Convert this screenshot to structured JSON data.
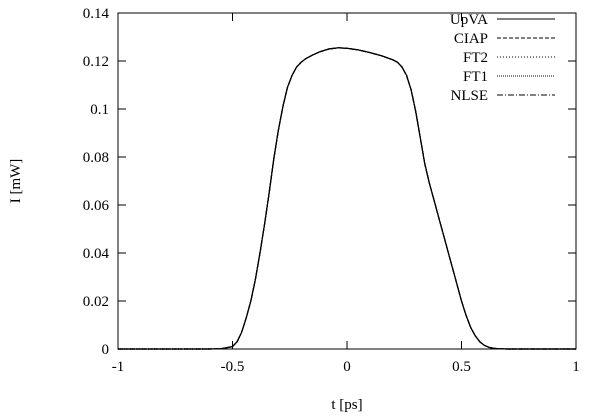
{
  "chart_data": {
    "type": "line",
    "title": "",
    "xlabel": "t [ps]",
    "ylabel": "I [mW]",
    "xlim": [
      -1,
      1
    ],
    "ylim": [
      0,
      0.14
    ],
    "x_ticks": [
      -1,
      -0.5,
      0,
      0.5,
      1
    ],
    "x_tick_labels": [
      "-1",
      "-0.5",
      "0",
      "0.5",
      "1"
    ],
    "y_ticks": [
      0,
      0.02,
      0.04,
      0.06,
      0.08,
      0.1,
      0.12,
      0.14
    ],
    "y_tick_labels": [
      "0",
      "0.02",
      "0.04",
      "0.06",
      "0.08",
      "0.1",
      "0.12",
      "0.14"
    ],
    "grid": false,
    "legend_position": "top-right",
    "x": [
      -1.0,
      -0.6,
      -0.55,
      -0.5,
      -0.48,
      -0.46,
      -0.44,
      -0.42,
      -0.4,
      -0.38,
      -0.36,
      -0.34,
      -0.32,
      -0.3,
      -0.28,
      -0.26,
      -0.24,
      -0.22,
      -0.2,
      -0.18,
      -0.15,
      -0.12,
      -0.08,
      -0.04,
      0.0,
      0.05,
      0.1,
      0.15,
      0.2,
      0.22,
      0.24,
      0.26,
      0.28,
      0.3,
      0.32,
      0.34,
      0.36,
      0.38,
      0.4,
      0.42,
      0.44,
      0.46,
      0.48,
      0.5,
      0.52,
      0.54,
      0.56,
      0.58,
      0.6,
      0.62,
      0.64,
      0.66,
      0.7,
      1.0
    ],
    "series": [
      {
        "name": "UpVA",
        "dash": "",
        "values": [
          0,
          0,
          0.0001,
          0.001,
          0.003,
          0.007,
          0.013,
          0.02,
          0.029,
          0.04,
          0.052,
          0.065,
          0.079,
          0.091,
          0.101,
          0.109,
          0.114,
          0.1175,
          0.1195,
          0.121,
          0.1225,
          0.1238,
          0.125,
          0.1255,
          0.1253,
          0.1246,
          0.1235,
          0.1222,
          0.1205,
          0.1195,
          0.1175,
          0.114,
          0.108,
          0.099,
          0.088,
          0.077,
          0.069,
          0.062,
          0.055,
          0.048,
          0.041,
          0.034,
          0.027,
          0.02,
          0.014,
          0.009,
          0.0055,
          0.003,
          0.0015,
          0.0007,
          0.0003,
          0.0001,
          0,
          0
        ]
      },
      {
        "name": "CIAP",
        "dash": "4,2",
        "values": [
          0,
          0,
          0.0001,
          0.001,
          0.003,
          0.007,
          0.013,
          0.02,
          0.029,
          0.04,
          0.052,
          0.065,
          0.079,
          0.091,
          0.101,
          0.109,
          0.114,
          0.1175,
          0.1195,
          0.121,
          0.1225,
          0.1238,
          0.125,
          0.1255,
          0.1253,
          0.1246,
          0.1235,
          0.1222,
          0.1205,
          0.1195,
          0.1175,
          0.114,
          0.108,
          0.099,
          0.088,
          0.077,
          0.069,
          0.062,
          0.055,
          0.048,
          0.041,
          0.034,
          0.027,
          0.02,
          0.014,
          0.009,
          0.0055,
          0.003,
          0.0015,
          0.0007,
          0.0003,
          0.0001,
          0,
          0
        ]
      },
      {
        "name": "FT2",
        "dash": "1,2",
        "values": [
          0,
          0,
          0.0001,
          0.001,
          0.003,
          0.007,
          0.013,
          0.02,
          0.029,
          0.04,
          0.052,
          0.065,
          0.079,
          0.091,
          0.101,
          0.109,
          0.114,
          0.1175,
          0.1195,
          0.121,
          0.1225,
          0.1238,
          0.125,
          0.1255,
          0.1253,
          0.1246,
          0.1235,
          0.1222,
          0.1205,
          0.1195,
          0.1175,
          0.114,
          0.108,
          0.099,
          0.088,
          0.077,
          0.069,
          0.062,
          0.055,
          0.048,
          0.041,
          0.034,
          0.027,
          0.02,
          0.014,
          0.009,
          0.0055,
          0.003,
          0.0015,
          0.0007,
          0.0003,
          0.0001,
          0,
          0
        ]
      },
      {
        "name": "FT1",
        "dash": "1,1",
        "values": [
          0,
          0,
          0.0001,
          0.001,
          0.003,
          0.007,
          0.013,
          0.02,
          0.029,
          0.04,
          0.052,
          0.065,
          0.079,
          0.091,
          0.101,
          0.109,
          0.114,
          0.1175,
          0.1195,
          0.121,
          0.1225,
          0.1238,
          0.125,
          0.1255,
          0.1253,
          0.1246,
          0.1235,
          0.1222,
          0.1205,
          0.1195,
          0.1175,
          0.114,
          0.108,
          0.099,
          0.088,
          0.077,
          0.069,
          0.062,
          0.055,
          0.048,
          0.041,
          0.034,
          0.027,
          0.02,
          0.014,
          0.009,
          0.0055,
          0.003,
          0.0015,
          0.0007,
          0.0003,
          0.0001,
          0,
          0
        ]
      },
      {
        "name": "NLSE",
        "dash": "6,2,1,2",
        "values": [
          0,
          0,
          0.0001,
          0.001,
          0.003,
          0.007,
          0.013,
          0.02,
          0.029,
          0.04,
          0.052,
          0.065,
          0.079,
          0.091,
          0.101,
          0.109,
          0.114,
          0.1175,
          0.1195,
          0.121,
          0.1225,
          0.1238,
          0.125,
          0.1255,
          0.1253,
          0.1246,
          0.1235,
          0.1222,
          0.1205,
          0.1195,
          0.1175,
          0.114,
          0.108,
          0.099,
          0.088,
          0.077,
          0.069,
          0.062,
          0.055,
          0.048,
          0.041,
          0.034,
          0.027,
          0.02,
          0.014,
          0.009,
          0.0055,
          0.003,
          0.0015,
          0.0007,
          0.0003,
          0.0001,
          0,
          0
        ]
      }
    ],
    "colors": {
      "line": "#000000",
      "axis": "#000000",
      "background": "#ffffff"
    }
  }
}
